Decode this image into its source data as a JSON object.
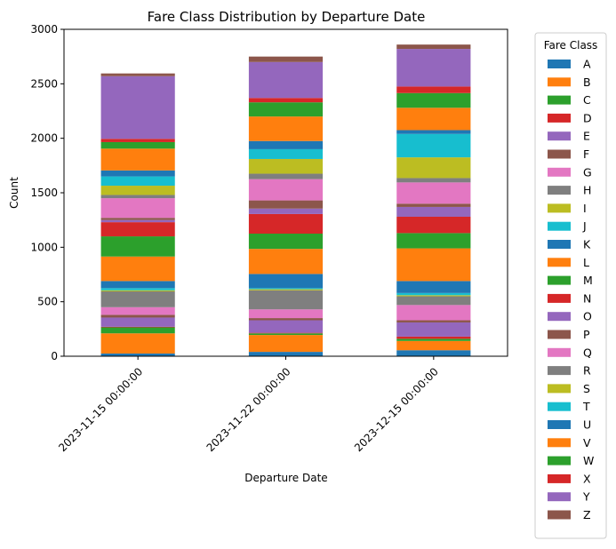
{
  "chart_data": {
    "type": "bar",
    "stacked": true,
    "title": "Fare Class Distribution by Departure Date",
    "xlabel": "Departure Date",
    "ylabel": "Count",
    "ylim": [
      0,
      3000
    ],
    "yticks": [
      0,
      500,
      1000,
      1500,
      2000,
      2500,
      3000
    ],
    "categories": [
      "2023-11-15 00:00:00",
      "2023-11-22 00:00:00",
      "2023-12-15 00:00:00"
    ],
    "legend": {
      "title": "Fare Class",
      "placement": "outside-right"
    },
    "series": [
      {
        "name": "A",
        "color": "#1f77b4",
        "values": [
          25,
          40,
          55
        ]
      },
      {
        "name": "B",
        "color": "#ff7f0e",
        "values": [
          185,
          155,
          85
        ]
      },
      {
        "name": "C",
        "color": "#2ca02c",
        "values": [
          55,
          15,
          20
        ]
      },
      {
        "name": "D",
        "color": "#d62728",
        "values": [
          5,
          5,
          20
        ]
      },
      {
        "name": "E",
        "color": "#9467bd",
        "values": [
          85,
          115,
          130
        ]
      },
      {
        "name": "F",
        "color": "#8c564b",
        "values": [
          25,
          20,
          20
        ]
      },
      {
        "name": "G",
        "color": "#e377c2",
        "values": [
          70,
          80,
          140
        ]
      },
      {
        "name": "H",
        "color": "#7f7f7f",
        "values": [
          145,
          175,
          80
        ]
      },
      {
        "name": "I",
        "color": "#bcbd22",
        "values": [
          10,
          10,
          10
        ]
      },
      {
        "name": "J",
        "color": "#17becf",
        "values": [
          20,
          10,
          20
        ]
      },
      {
        "name": "K",
        "color": "#1f77b4",
        "values": [
          65,
          130,
          110
        ]
      },
      {
        "name": "L",
        "color": "#ff7f0e",
        "values": [
          225,
          230,
          300
        ]
      },
      {
        "name": "M",
        "color": "#2ca02c",
        "values": [
          185,
          140,
          140
        ]
      },
      {
        "name": "N",
        "color": "#d62728",
        "values": [
          130,
          180,
          150
        ]
      },
      {
        "name": "O",
        "color": "#9467bd",
        "values": [
          20,
          50,
          90
        ]
      },
      {
        "name": "P",
        "color": "#8c564b",
        "values": [
          20,
          75,
          30
        ]
      },
      {
        "name": "Q",
        "color": "#e377c2",
        "values": [
          180,
          195,
          195
        ]
      },
      {
        "name": "R",
        "color": "#7f7f7f",
        "values": [
          30,
          50,
          40
        ]
      },
      {
        "name": "S",
        "color": "#bcbd22",
        "values": [
          85,
          135,
          190
        ]
      },
      {
        "name": "T",
        "color": "#17becf",
        "values": [
          85,
          90,
          215
        ]
      },
      {
        "name": "U",
        "color": "#1f77b4",
        "values": [
          55,
          75,
          35
        ]
      },
      {
        "name": "V",
        "color": "#ff7f0e",
        "values": [
          200,
          225,
          205
        ]
      },
      {
        "name": "W",
        "color": "#2ca02c",
        "values": [
          60,
          130,
          135
        ]
      },
      {
        "name": "X",
        "color": "#d62728",
        "values": [
          30,
          40,
          60
        ]
      },
      {
        "name": "Y",
        "color": "#9467bd",
        "values": [
          575,
          330,
          345
        ]
      },
      {
        "name": "Z",
        "color": "#8c564b",
        "values": [
          25,
          50,
          40
        ]
      }
    ]
  }
}
